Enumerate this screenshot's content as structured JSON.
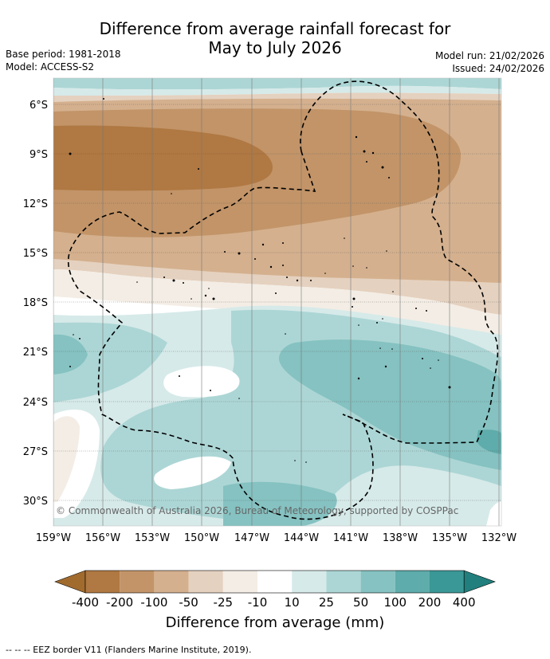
{
  "title": {
    "line1": "Difference from average rainfall forecast for",
    "line2": "May to July 2026"
  },
  "meta": {
    "base_period": "Base period: 1981-2018",
    "model": "Model: ACCESS-S2",
    "model_run": "Model run: 21/02/2026",
    "issued": "Issued: 24/02/2026"
  },
  "map": {
    "lat_labels": [
      "6°S",
      "9°S",
      "12°S",
      "15°S",
      "18°S",
      "21°S",
      "24°S",
      "27°S",
      "30°S"
    ],
    "lon_labels": [
      "159°W",
      "156°W",
      "153°W",
      "150°W",
      "147°W",
      "144°W",
      "141°W",
      "138°W",
      "135°W",
      "132°W"
    ],
    "copyright": "© Commonwealth of Australia 2026, Bureau of Meteorology, supported by COSPPac"
  },
  "legend": {
    "title": "Difference from average (mm)",
    "tick_labels": [
      "-400",
      "-200",
      "-100",
      "-50",
      "-25",
      "-10",
      "10",
      "25",
      "50",
      "100",
      "200",
      "400"
    ],
    "colors": [
      "#a16b2e",
      "#b07842",
      "#c29468",
      "#d4b08e",
      "#e5d1bf",
      "#f3ede5",
      "#ffffff",
      "#d6eae9",
      "#acd6d5",
      "#85c2c1",
      "#5eacab",
      "#3a9896",
      "#217f7d"
    ]
  },
  "footnote": "-- -- -- EEZ border V11 (Flanders Marine Institute, 2019)."
}
